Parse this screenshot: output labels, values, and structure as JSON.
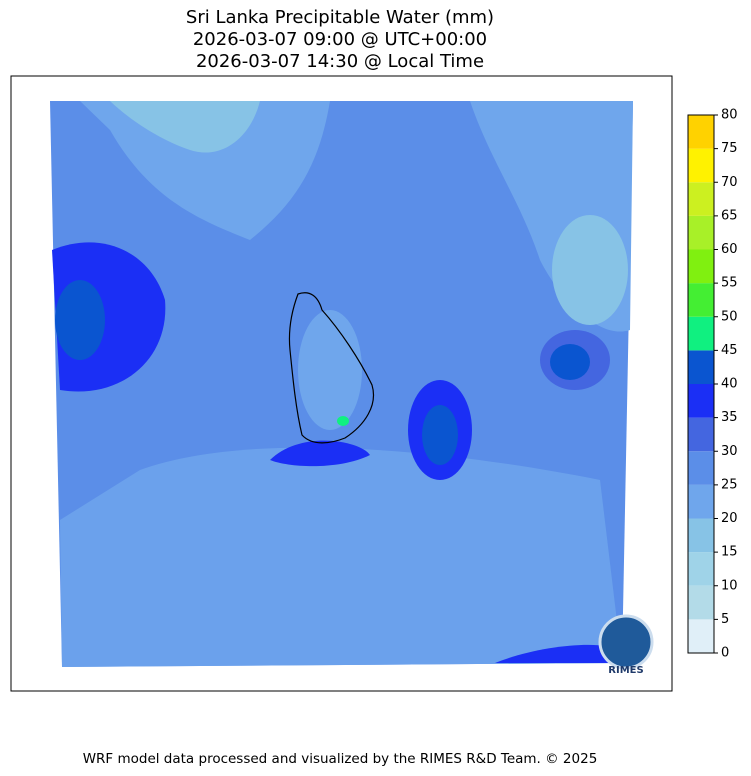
{
  "title_lines": [
    "Sri Lanka Precipitable Water (mm)",
    "2026-03-07 09:00 @ UTC+00:00",
    "2026-03-07 14:30 @ Local Time"
  ],
  "colorbar": {
    "levels": [
      0,
      5,
      10,
      15,
      20,
      25,
      30,
      35,
      40,
      45,
      50,
      55,
      60,
      65,
      70,
      75,
      80
    ],
    "colors": [
      "#e0eff8",
      "#b3dbe8",
      "#9fd3e8",
      "#87c3e6",
      "#6fa6ec",
      "#5b8ee8",
      "#4466e0",
      "#1b2ff5",
      "#0a55d0",
      "#10f080",
      "#44ee33",
      "#80f010",
      "#a8f028",
      "#ccf020",
      "#fff200",
      "#ffd200"
    ]
  },
  "logo": "RIMES",
  "footer": "WRF model data processed and visualized by the RIMES R&D Team. © 2025"
}
